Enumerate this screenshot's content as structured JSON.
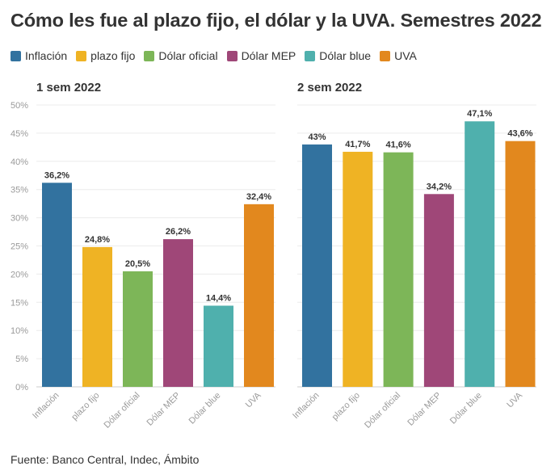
{
  "title": "Cómo les fue al plazo fijo, el dólar y la UVA. Semestres 2022",
  "legend": [
    {
      "label": "Inflación",
      "color": "#32729f"
    },
    {
      "label": "plazo fijo",
      "color": "#efb324"
    },
    {
      "label": "Dólar oficial",
      "color": "#7db658"
    },
    {
      "label": "Dólar MEP",
      "color": "#9f4778"
    },
    {
      "label": "Dólar blue",
      "color": "#4fb0ad"
    },
    {
      "label": "UVA",
      "color": "#e2881e"
    }
  ],
  "source": "Fuente: Banco Central, Indec, Ámbito",
  "chart_data": [
    {
      "type": "bar",
      "title": "1 sem 2022",
      "categories": [
        "Inflación",
        "plazo fijo",
        "Dólar oficial",
        "Dólar MEP",
        "Dólar blue",
        "UVA"
      ],
      "values": [
        36.2,
        24.8,
        20.5,
        26.2,
        14.4,
        32.4
      ],
      "value_labels": [
        "36,2%",
        "24,8%",
        "20,5%",
        "26,2%",
        "14,4%",
        "32,4%"
      ],
      "ylim": [
        0,
        50
      ],
      "yticks": [
        "0%",
        "5%",
        "10%",
        "15%",
        "20%",
        "25%",
        "30%",
        "35%",
        "40%",
        "45%",
        "50%"
      ],
      "colors": [
        "#32729f",
        "#efb324",
        "#7db658",
        "#9f4778",
        "#4fb0ad",
        "#e2881e"
      ],
      "grid": true
    },
    {
      "type": "bar",
      "title": "2 sem 2022",
      "categories": [
        "Inflación",
        "plazo fijo",
        "Dólar oficial",
        "Dólar MEP",
        "Dólar blue",
        "UVA"
      ],
      "values": [
        43,
        41.7,
        41.6,
        34.2,
        47.1,
        43.6
      ],
      "value_labels": [
        "43%",
        "41,7%",
        "41,6%",
        "34,2%",
        "47,1%",
        "43,6%"
      ],
      "ylim": [
        0,
        50
      ],
      "colors": [
        "#32729f",
        "#efb324",
        "#7db658",
        "#9f4778",
        "#4fb0ad",
        "#e2881e"
      ],
      "grid": true
    }
  ]
}
